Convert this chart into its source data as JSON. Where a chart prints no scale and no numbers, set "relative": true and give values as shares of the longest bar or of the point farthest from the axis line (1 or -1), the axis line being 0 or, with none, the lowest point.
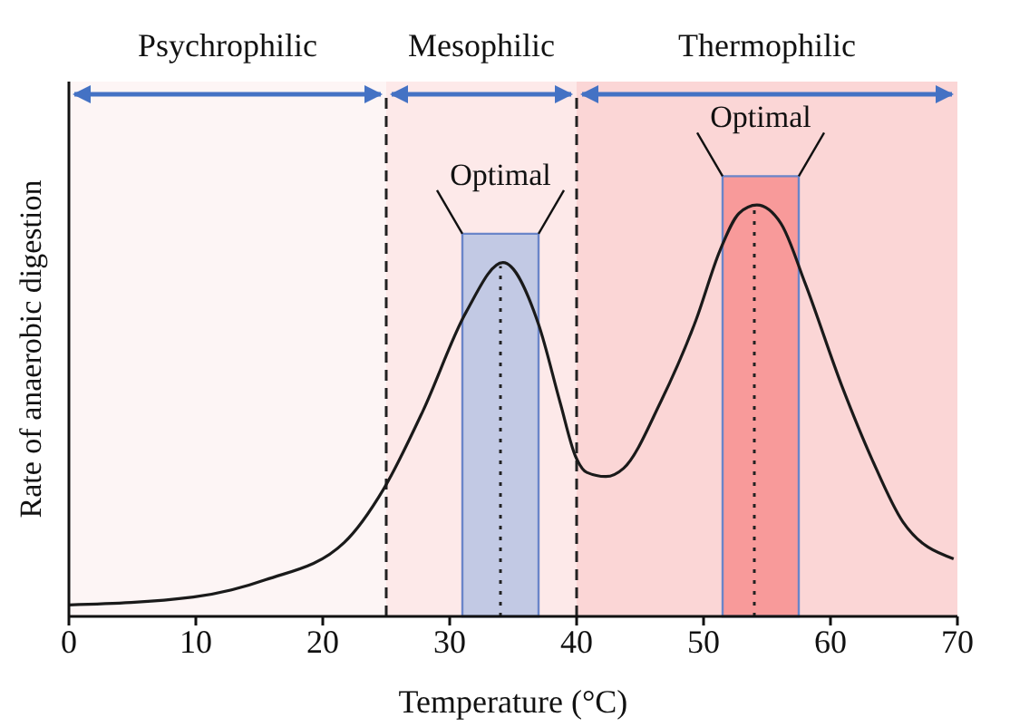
{
  "chart_data": {
    "type": "line",
    "xlabel": "Temperature (°C)",
    "ylabel": "Rate of anaerobic digestion",
    "relative": true,
    "marker": "none",
    "line_style": "solid",
    "tick_labels": "x",
    "xlim": [
      0,
      70
    ],
    "xticks": [
      0,
      10,
      20,
      30,
      40,
      50,
      60,
      70
    ],
    "series": [
      {
        "color": "#1a1a1a",
        "x": [
          0,
          9.8,
          15.5,
          21.7,
          24.8,
          27.9,
          31.3,
          34.2,
          37,
          38.7,
          39.9,
          40.8,
          42.3,
          43.7,
          46.6,
          49.4,
          51.3,
          52.8,
          54.2,
          56.1,
          58,
          60.9,
          63.3,
          65.7,
          69.7
        ],
        "values": [
          0.028,
          0.047,
          0.089,
          0.18,
          0.31,
          0.5,
          0.74,
          0.86,
          0.71,
          0.52,
          0.39,
          0.35,
          0.34,
          0.36,
          0.52,
          0.72,
          0.89,
          0.98,
          1,
          0.955,
          0.81,
          0.56,
          0.38,
          0.23,
          0.14
        ]
      }
    ],
    "bands": [
      {
        "axis": "x",
        "from": 0,
        "to": 25,
        "label": "Psychrophilic",
        "color": "#fdf5f5"
      },
      {
        "axis": "x",
        "from": 25,
        "to": 40,
        "label": "Mesophilic",
        "color": "#fde9e9"
      },
      {
        "axis": "x",
        "from": 40,
        "to": 70,
        "label": "Thermophilic",
        "color": "#fbd6d6"
      },
      {
        "axis": "x",
        "from": 31,
        "to": 37,
        "label": "Optimal",
        "color": "#c2c9e4"
      },
      {
        "axis": "x",
        "from": 51.5,
        "to": 57.5,
        "label": "Optimal",
        "color": "#f89a9a"
      }
    ],
    "ref_lines": [
      {
        "axis": "x",
        "value": 25,
        "line_style": "dashed",
        "color": "#222222"
      },
      {
        "axis": "x",
        "value": 40,
        "line_style": "dashed",
        "color": "#222222"
      },
      {
        "axis": "x",
        "value": 34,
        "line_style": "dotted",
        "color": "#222222"
      },
      {
        "axis": "x",
        "value": 54,
        "line_style": "dotted",
        "color": "#222222"
      }
    ]
  }
}
